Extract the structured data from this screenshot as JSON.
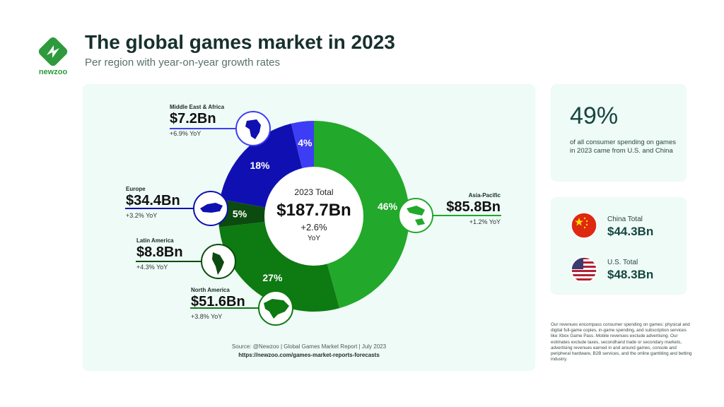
{
  "brand": {
    "name": "newzoo",
    "color": "#2f9a3d"
  },
  "header": {
    "title": "The global games market in 2023",
    "subtitle": "Per region with year-on-year growth rates"
  },
  "chart_data": {
    "type": "pie",
    "title": "The global games market in 2023",
    "subtitle": "Per region with year-on-year growth rates",
    "center": {
      "label": "2023 Total",
      "value": "$187.7Bn",
      "growth": "+2.6%",
      "growth_unit": "YoY"
    },
    "slices": [
      {
        "name": "Asia-Pacific",
        "value": 85.8,
        "display": "$85.8Bn",
        "pct_label": "46%",
        "yoy": "+1.2% YoY",
        "color": "#22a82a",
        "icon": "asia-pacific-map-icon"
      },
      {
        "name": "North America",
        "value": 51.6,
        "display": "$51.6Bn",
        "pct_label": "27%",
        "yoy": "+3.8% YoY",
        "color": "#0e7a12",
        "icon": "north-america-map-icon"
      },
      {
        "name": "Latin America",
        "value": 8.8,
        "display": "$8.8Bn",
        "pct_label": "5%",
        "yoy": "+4.3% YoY",
        "color": "#0c4b0f",
        "icon": "south-america-map-icon"
      },
      {
        "name": "Europe",
        "value": 34.4,
        "display": "$34.4Bn",
        "pct_label": "18%",
        "yoy": "+3.2% YoY",
        "color": "#1010b2",
        "icon": "europe-map-icon"
      },
      {
        "name": "Middle East & Africa",
        "value": 7.2,
        "display": "$7.2Bn",
        "pct_label": "4%",
        "yoy": "+6.9% YoY",
        "color": "#3d3df5",
        "icon": "africa-map-icon"
      }
    ]
  },
  "source": {
    "line1": "Source: @Newzoo | Global Games Market Report | July 2023",
    "line2": "https://newzoo.com/games-market-reports-forecasts"
  },
  "stat": {
    "value": "49%",
    "text": "of all consumer spending on games in 2023 came from U.S. and China"
  },
  "countries": [
    {
      "label": "China Total",
      "value": "$44.3Bn",
      "icon": "china-flag-icon"
    },
    {
      "label": "U.S. Total",
      "value": "$48.3Bn",
      "icon": "us-flag-icon"
    }
  ],
  "disclaimer": "Our revenues encompass consumer spending on games: physical and digital full-game copies, in-game spending, and subscription services like Xbox Game Pass. Mobile revenues exclude advertising. Our estimates exclude taxes, secondhand trade or secondary markets, advertising revenues earned in and around games, console and peripheral hardware, B2B services, and the online gambling and betting industry."
}
